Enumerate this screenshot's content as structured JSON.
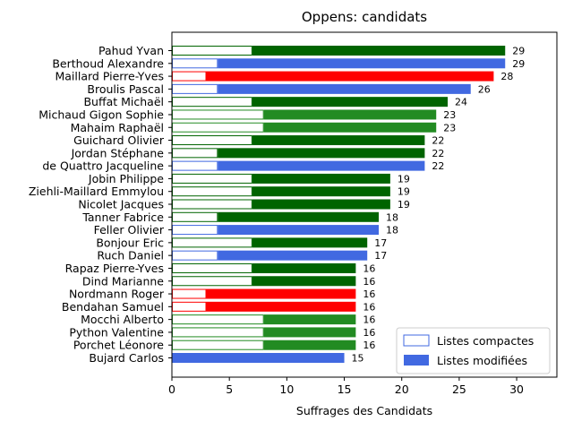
{
  "chart_data": {
    "type": "bar",
    "orientation": "horizontal",
    "stacked": true,
    "title": "Oppens: candidats",
    "xlabel": "Suffrages des Candidats",
    "ylabel": "",
    "xlim": [
      0,
      33.5
    ],
    "xticks": [
      0,
      5,
      10,
      15,
      20,
      25,
      30
    ],
    "grid": false,
    "legend_placement": "bottom-right",
    "legend": [
      {
        "label": "Listes compactes",
        "style": "outline"
      },
      {
        "label": "Listes modifiées",
        "style": "filled"
      }
    ],
    "colors": {
      "green_dark": "#006400",
      "green": "#228b22",
      "blue": "#4169e1",
      "red": "#ff0000"
    },
    "candidates": [
      {
        "name": "Pahud Yvan",
        "compactes": 7,
        "modifiees": 22,
        "total": 29,
        "color": "green_dark"
      },
      {
        "name": "Berthoud Alexandre",
        "compactes": 4,
        "modifiees": 25,
        "total": 29,
        "color": "blue"
      },
      {
        "name": "Maillard Pierre-Yves",
        "compactes": 3,
        "modifiees": 25,
        "total": 28,
        "color": "red"
      },
      {
        "name": "Broulis Pascal",
        "compactes": 4,
        "modifiees": 22,
        "total": 26,
        "color": "blue"
      },
      {
        "name": "Buffat Michaël",
        "compactes": 7,
        "modifiees": 17,
        "total": 24,
        "color": "green_dark"
      },
      {
        "name": "Michaud Gigon Sophie",
        "compactes": 8,
        "modifiees": 15,
        "total": 23,
        "color": "green"
      },
      {
        "name": "Mahaim Raphaël",
        "compactes": 8,
        "modifiees": 15,
        "total": 23,
        "color": "green"
      },
      {
        "name": "Guichard Olivier",
        "compactes": 7,
        "modifiees": 15,
        "total": 22,
        "color": "green_dark"
      },
      {
        "name": "Jordan Stéphane",
        "compactes": 4,
        "modifiees": 18,
        "total": 22,
        "color": "green_dark"
      },
      {
        "name": "de Quattro Jacqueline",
        "compactes": 4,
        "modifiees": 18,
        "total": 22,
        "color": "blue"
      },
      {
        "name": "Jobin Philippe",
        "compactes": 7,
        "modifiees": 12,
        "total": 19,
        "color": "green_dark"
      },
      {
        "name": "Ziehli-Maillard Emmylou",
        "compactes": 7,
        "modifiees": 12,
        "total": 19,
        "color": "green_dark"
      },
      {
        "name": "Nicolet Jacques",
        "compactes": 7,
        "modifiees": 12,
        "total": 19,
        "color": "green_dark"
      },
      {
        "name": "Tanner Fabrice",
        "compactes": 4,
        "modifiees": 14,
        "total": 18,
        "color": "green_dark"
      },
      {
        "name": "Feller Olivier",
        "compactes": 4,
        "modifiees": 14,
        "total": 18,
        "color": "blue"
      },
      {
        "name": "Bonjour Eric",
        "compactes": 7,
        "modifiees": 10,
        "total": 17,
        "color": "green_dark"
      },
      {
        "name": "Ruch Daniel",
        "compactes": 4,
        "modifiees": 13,
        "total": 17,
        "color": "blue"
      },
      {
        "name": "Rapaz Pierre-Yves",
        "compactes": 7,
        "modifiees": 9,
        "total": 16,
        "color": "green_dark"
      },
      {
        "name": "Dind Marianne",
        "compactes": 7,
        "modifiees": 9,
        "total": 16,
        "color": "green_dark"
      },
      {
        "name": "Nordmann Roger",
        "compactes": 3,
        "modifiees": 13,
        "total": 16,
        "color": "red"
      },
      {
        "name": "Bendahan Samuel",
        "compactes": 3,
        "modifiees": 13,
        "total": 16,
        "color": "red"
      },
      {
        "name": "Mocchi Alberto",
        "compactes": 8,
        "modifiees": 8,
        "total": 16,
        "color": "green"
      },
      {
        "name": "Python Valentine",
        "compactes": 8,
        "modifiees": 8,
        "total": 16,
        "color": "green"
      },
      {
        "name": "Porchet Léonore",
        "compactes": 8,
        "modifiees": 8,
        "total": 16,
        "color": "green"
      },
      {
        "name": "Bujard Carlos",
        "compactes": 0,
        "modifiees": 15,
        "total": 15,
        "color": "blue"
      }
    ]
  }
}
